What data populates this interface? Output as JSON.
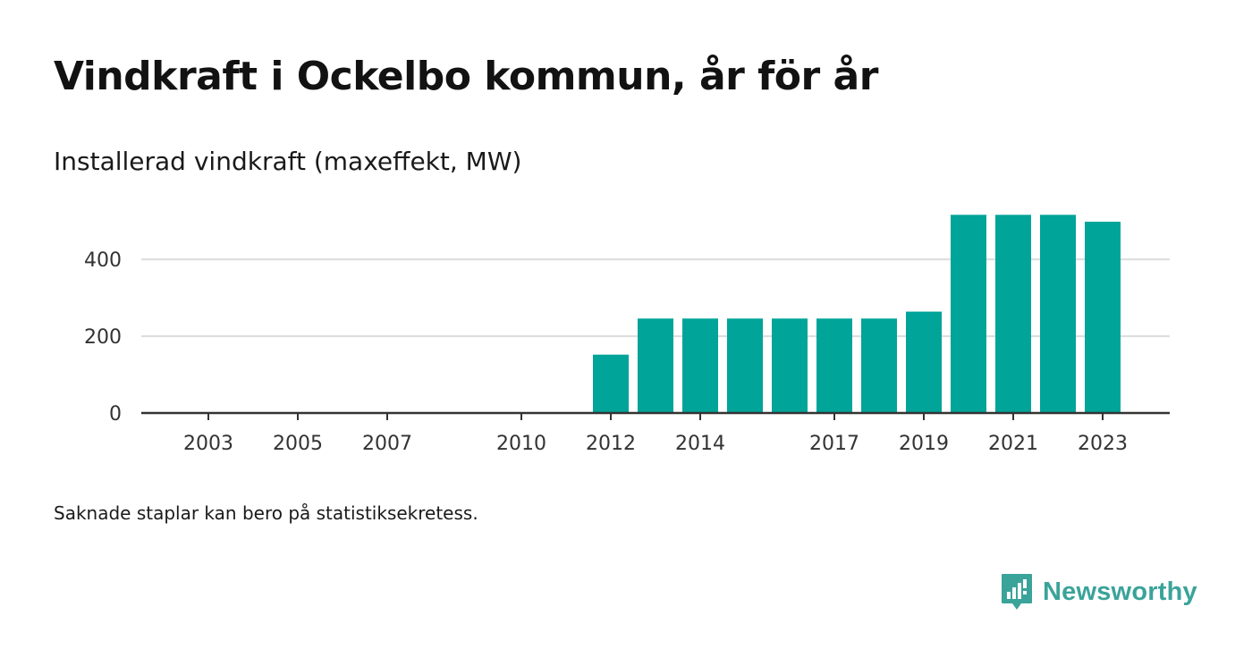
{
  "title": "Vindkraft i Ockelbo kommun, år för år",
  "subtitle": "Installerad vindkraft (maxeffekt, MW)",
  "footnote": "Saknade staplar kan bero på statistiksekretess.",
  "brand": {
    "name": "Newsworthy",
    "logo_icon": "bar-chart-speech-bubble-icon",
    "color": "#3aa39a"
  },
  "chart_data": {
    "type": "bar",
    "x": [
      2003,
      2004,
      2005,
      2006,
      2007,
      2008,
      2009,
      2010,
      2011,
      2012,
      2013,
      2014,
      2015,
      2016,
      2017,
      2018,
      2019,
      2020,
      2021,
      2022,
      2023
    ],
    "values": [
      0,
      0,
      0,
      0,
      0,
      0,
      0,
      0,
      0,
      152,
      246,
      246,
      246,
      246,
      246,
      246,
      264,
      516,
      516,
      516,
      498
    ],
    "xticks": [
      2003,
      2005,
      2007,
      2010,
      2012,
      2014,
      2017,
      2019,
      2021,
      2023
    ],
    "yticks": [
      0,
      200,
      400
    ],
    "ylim": [
      0,
      540
    ],
    "xlim": [
      2001.5,
      2024.5
    ],
    "grid": true,
    "bar_color": "#00a499",
    "title": "Vindkraft i Ockelbo kommun, år för år",
    "ylabel": "Installerad vindkraft (maxeffekt, MW)",
    "xlabel": ""
  }
}
